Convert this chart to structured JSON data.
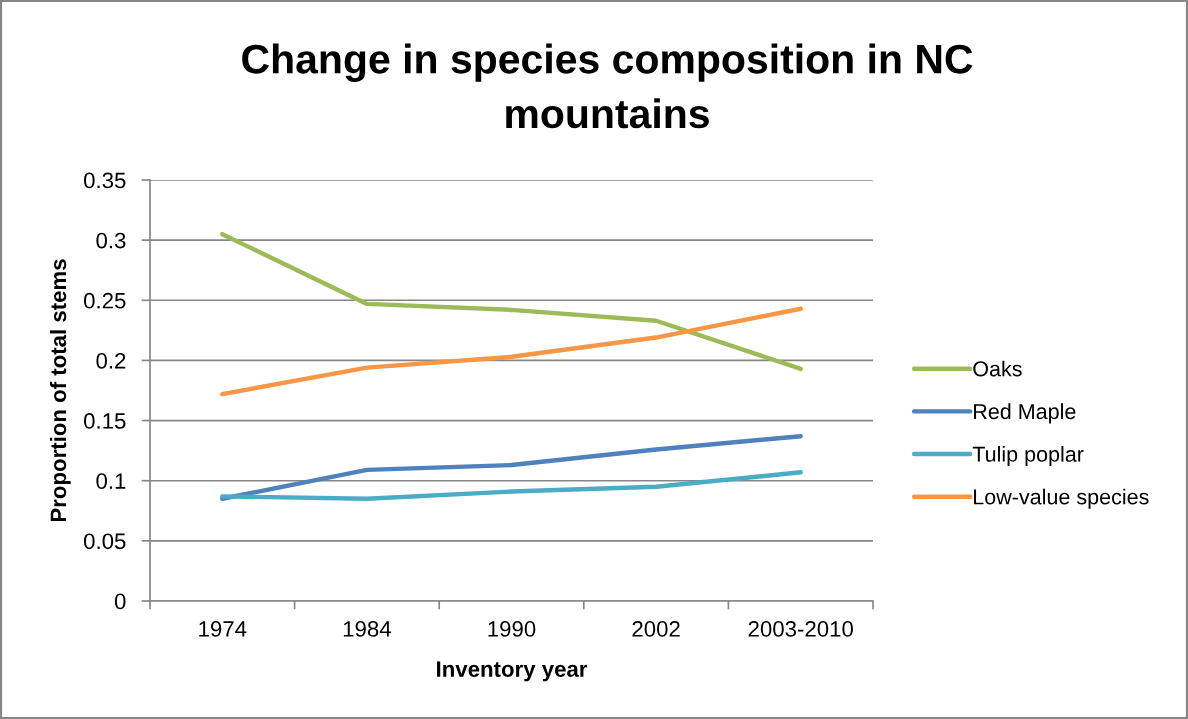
{
  "chart_data": {
    "type": "line",
    "title": "Change in species composition in NC mountains",
    "xlabel": "Inventory year",
    "ylabel": "Proportion of total stems",
    "categories": [
      "1974",
      "1984",
      "1990",
      "2002",
      "2003-2010"
    ],
    "series": [
      {
        "name": "Oaks",
        "color": "#9bbb59",
        "values": [
          0.305,
          0.247,
          0.242,
          0.233,
          0.193
        ]
      },
      {
        "name": "Red Maple",
        "color": "#4f81bd",
        "values": [
          0.085,
          0.109,
          0.113,
          0.126,
          0.137
        ]
      },
      {
        "name": "Tulip poplar",
        "color": "#4bacc6",
        "values": [
          0.087,
          0.085,
          0.091,
          0.095,
          0.107
        ]
      },
      {
        "name": "Low-value species",
        "color": "#f79646",
        "values": [
          0.172,
          0.194,
          0.203,
          0.219,
          0.243
        ]
      }
    ],
    "ylim": [
      0,
      0.35
    ],
    "yticks": [
      0,
      0.05,
      0.1,
      0.15,
      0.2,
      0.25,
      0.3,
      0.35
    ],
    "grid": "y",
    "legend": "right",
    "marker": "none",
    "line_style": "solid"
  }
}
